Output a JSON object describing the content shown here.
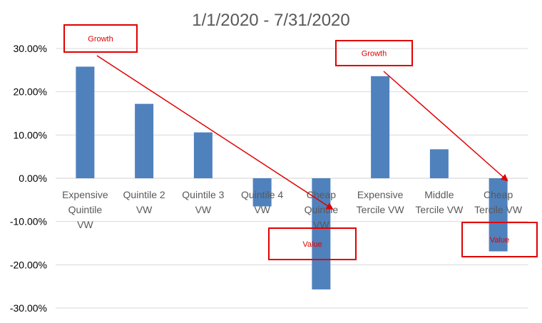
{
  "chart_data": {
    "type": "bar",
    "title": "1/1/2020 - 7/31/2020",
    "xlabel": "",
    "ylabel": "",
    "categories": [
      [
        "Expensive",
        "Quintile",
        "VW"
      ],
      [
        "Quintile 2",
        "VW"
      ],
      [
        "Quintile 3",
        "VW"
      ],
      [
        "Quintile 4",
        "VW"
      ],
      [
        "Cheap",
        "Quintile",
        "VW"
      ],
      [
        "Expensive",
        "Tercile VW"
      ],
      [
        "Middle",
        "Tercile VW"
      ],
      [
        "Cheap",
        "Tercile VW"
      ]
    ],
    "values": [
      25.8,
      17.2,
      10.6,
      -6.5,
      -25.7,
      23.6,
      6.7,
      -16.9
    ],
    "ylim": [
      -30,
      30
    ],
    "yticks": [
      30,
      20,
      10,
      0,
      -10,
      -20,
      -30
    ],
    "ytick_labels": [
      "30.00%",
      "20.00%",
      "10.00%",
      "0.00%",
      "-10.00%",
      "-20.00%",
      "-30.00%"
    ],
    "grid": true,
    "bar_color": "#4f81bd",
    "annotations": [
      {
        "label": "Growth",
        "from_category": 0,
        "to_category": 4
      },
      {
        "label": "Value",
        "from_category": 0,
        "to_category": 4
      },
      {
        "label": "Growth",
        "from_category": 5,
        "to_category": 7
      },
      {
        "label": "Value",
        "from_category": 5,
        "to_category": 7
      }
    ],
    "annotation_color": "#e00000"
  }
}
